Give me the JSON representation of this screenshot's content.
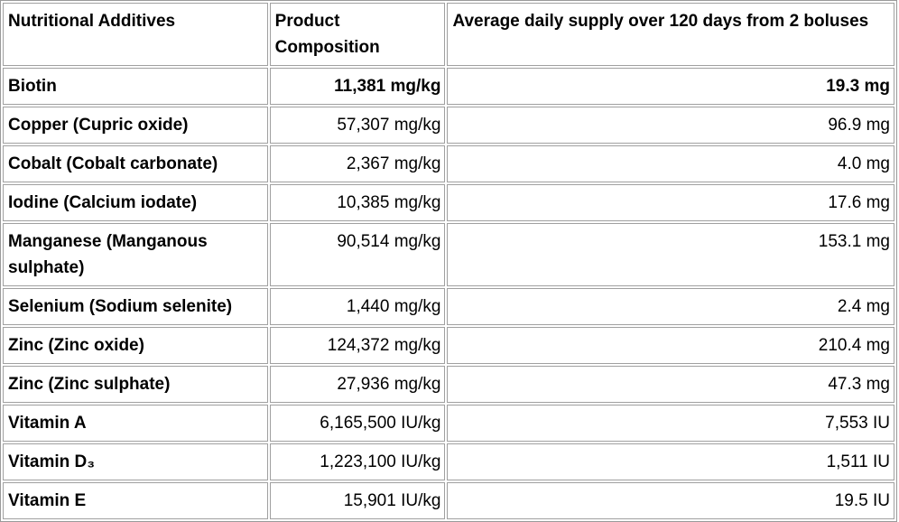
{
  "table": {
    "headers": [
      "Nutritional Additives",
      "Product Composition",
      "Average daily supply over 120 days from 2 boluses"
    ],
    "rows": [
      {
        "name": "Biotin",
        "composition": "11,381 mg/kg",
        "supply": "19.3 mg",
        "bold": true
      },
      {
        "name": "Copper (Cupric oxide)",
        "composition": "57,307 mg/kg",
        "supply": "96.9 mg"
      },
      {
        "name": "Cobalt (Cobalt carbonate)",
        "composition": "2,367 mg/kg",
        "supply": "4.0 mg"
      },
      {
        "name": "Iodine (Calcium iodate)",
        "composition": "10,385 mg/kg",
        "supply": "17.6 mg"
      },
      {
        "name": "Manganese (Manganous sulphate)",
        "composition": "90,514 mg/kg",
        "supply": "153.1 mg"
      },
      {
        "name": "Selenium (Sodium selenite)",
        "composition": "1,440 mg/kg",
        "supply": "2.4 mg"
      },
      {
        "name": "Zinc (Zinc oxide)",
        "composition": "124,372 mg/kg",
        "supply": "210.4 mg"
      },
      {
        "name": "Zinc (Zinc sulphate)",
        "composition": "27,936 mg/kg",
        "supply": "47.3 mg"
      },
      {
        "name": "Vitamin A",
        "composition": "6,165,500 IU/kg",
        "supply": "7,553 IU"
      },
      {
        "name": "Vitamin D₃",
        "composition": "1,223,100 IU/kg",
        "supply": "1,511 IU"
      },
      {
        "name": "Vitamin E",
        "composition": "15,901 IU/kg",
        "supply": "19.5 IU"
      }
    ]
  }
}
